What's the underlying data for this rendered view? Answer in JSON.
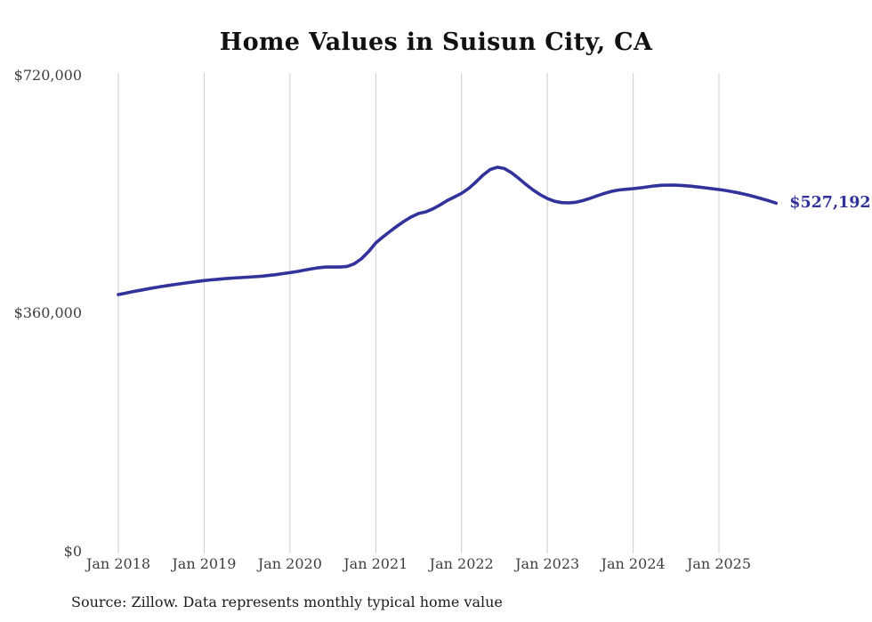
{
  "title": "Home Values in Suisun City, CA",
  "source_note": "Source: Zillow. Data represents monthly typical home value",
  "end_label": "$527,192",
  "colors": {
    "line": "#32329b",
    "grid": "#cccccc",
    "end_label": "#32329b",
    "tick_text": "#3f3f3f",
    "title_text": "#111111",
    "source_text": "#1c1c1c",
    "background": "#ffffff"
  },
  "chart_data": {
    "type": "line",
    "title": "Home Values in Suisun City, CA",
    "xlabel": "",
    "ylabel": "",
    "x_start_month": "Jan 2018",
    "x_end_month": "Sep 2025",
    "x_tick_labels": [
      "Jan 2018",
      "Jan 2019",
      "Jan 2020",
      "Jan 2021",
      "Jan 2022",
      "Jan 2023",
      "Jan 2024",
      "Jan 2025"
    ],
    "y_tick_labels": [
      "$720,000",
      "$360,000",
      "$0"
    ],
    "y_ticks": [
      720000,
      360000,
      0
    ],
    "ylim": [
      0,
      720000
    ],
    "grid": "vertical-only",
    "legend": "none",
    "annotation_end_value": 527192,
    "series": [
      {
        "name": "Typical home value (monthly)",
        "final_value": 527192,
        "values": [
          389000,
          391000,
          393200,
          395300,
          397300,
          399200,
          401000,
          402700,
          404300,
          405800,
          407300,
          408700,
          410000,
          411100,
          412100,
          413000,
          413800,
          414500,
          415200,
          415900,
          416700,
          417700,
          419000,
          420500,
          422000,
          423800,
          425800,
          427800,
          429500,
          430500,
          430700,
          430500,
          431500,
          435500,
          443000,
          454000,
          467000,
          476000,
          484500,
          492500,
          500000,
          506500,
          511500,
          514000,
          518500,
          524500,
          531000,
          536500,
          542000,
          549500,
          559000,
          569500,
          578000,
          581500,
          579500,
          573000,
          564500,
          555500,
          547000,
          540000,
          534200,
          530000,
          528000,
          527500,
          528500,
          531000,
          534500,
          538500,
          542000,
          545000,
          547000,
          548200,
          549100,
          550300,
          551800,
          553200,
          554200,
          554500,
          554300,
          553700,
          552800,
          551700,
          550400,
          549100,
          547800,
          546200,
          544300,
          542100,
          539600,
          536800,
          533800,
          530600,
          527192
        ]
      }
    ]
  }
}
